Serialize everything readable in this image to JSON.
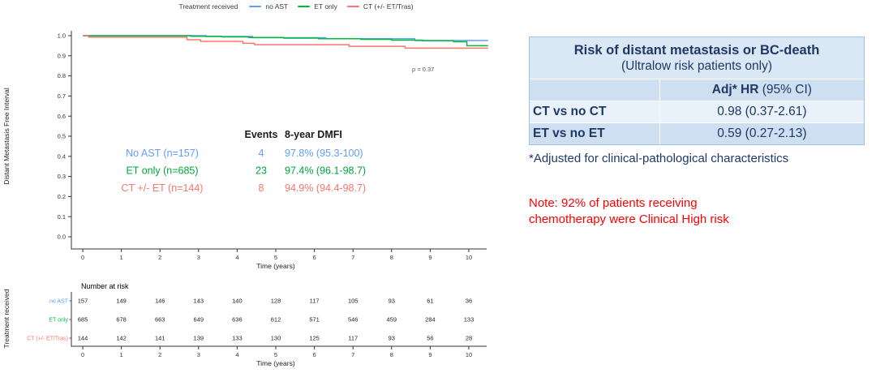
{
  "chart_data": {
    "type": "line",
    "variant": "kaplan-meier-step",
    "title": "",
    "xlabel": "Time (years)",
    "ylabel": "Distant Metastasis Free Interval",
    "xlim": [
      0,
      10.5
    ],
    "ylim": [
      0.0,
      1.0
    ],
    "x_ticks": [
      0,
      1,
      2,
      3,
      4,
      5,
      6,
      7,
      8,
      9,
      10
    ],
    "y_ticks": [
      1.0,
      0.9,
      0.8,
      0.7,
      0.6,
      0.5,
      0.4,
      0.3,
      0.2,
      0.1,
      0.0
    ],
    "grid": false,
    "legend_position": "top",
    "legend_title": "Treatment received",
    "p_value": "p = 0.37",
    "series": [
      {
        "name": "no AST",
        "color": "#619CFF",
        "n": 157,
        "events": 4,
        "dmfi_8yr": "97.8% (95.3-100)",
        "steps": [
          [
            0,
            1.0
          ],
          [
            3.2,
            0.996
          ],
          [
            4.4,
            0.99
          ],
          [
            6.3,
            0.985
          ],
          [
            8.6,
            0.976
          ],
          [
            10.5,
            0.976
          ]
        ]
      },
      {
        "name": "ET only",
        "color": "#00BA38",
        "n": 685,
        "events": 23,
        "dmfi_8yr": "97.4% (96.1-98.7)",
        "steps": [
          [
            0,
            1.0
          ],
          [
            2.8,
            0.997
          ],
          [
            3.6,
            0.994
          ],
          [
            4.3,
            0.991
          ],
          [
            5.2,
            0.988
          ],
          [
            6.1,
            0.985
          ],
          [
            7.2,
            0.982
          ],
          [
            8.0,
            0.978
          ],
          [
            8.8,
            0.975
          ],
          [
            9.6,
            0.97
          ],
          [
            9.95,
            0.95
          ],
          [
            10.5,
            0.95
          ]
        ]
      },
      {
        "name": "CT (+/- ET/Tras)",
        "color": "#F8766D",
        "n": 144,
        "events": 8,
        "dmfi_8yr": "94.9% (94.4-98.7)",
        "steps": [
          [
            0,
            1.0
          ],
          [
            0.15,
            0.993
          ],
          [
            2.7,
            0.98
          ],
          [
            3.05,
            0.972
          ],
          [
            4.15,
            0.962
          ],
          [
            4.45,
            0.955
          ],
          [
            6.9,
            0.947
          ],
          [
            8.35,
            0.938
          ],
          [
            10.5,
            0.938
          ]
        ]
      }
    ],
    "annotation_table": {
      "header_events": "Events",
      "header_dmfi": "8-year DMFI",
      "rows": [
        {
          "label": "No AST (n=157)",
          "events": "4",
          "dmfi": "97.8% (95.3-100)",
          "color": "#619CFF"
        },
        {
          "label": "ET only (n=685)",
          "events": "23",
          "dmfi": "97.4% (96.1-98.7)",
          "color": "#00A63C"
        },
        {
          "label": "CT +/- ET (n=144)",
          "events": "8",
          "dmfi": "94.9% (94.4-98.7)",
          "color": "#F8766D"
        }
      ]
    },
    "number_at_risk": {
      "title": "Number at risk",
      "axis_label": "Treatment received",
      "xlabel": "Time (years)",
      "times": [
        0,
        1,
        2,
        3,
        4,
        5,
        6,
        7,
        8,
        9,
        10
      ],
      "rows": [
        {
          "label": "no AST",
          "color": "#619CFF",
          "values": [
            157,
            149,
            146,
            143,
            140,
            128,
            117,
            105,
            93,
            61,
            36
          ]
        },
        {
          "label": "ET only",
          "color": "#00BA38",
          "values": [
            685,
            678,
            663,
            649,
            636,
            612,
            571,
            546,
            459,
            284,
            133
          ]
        },
        {
          "label": "CT (+/- ET/Tras)",
          "color": "#F8766D",
          "values": [
            144,
            142,
            141,
            139,
            133,
            130,
            125,
            117,
            93,
            56,
            28
          ]
        }
      ]
    }
  },
  "side_panel": {
    "table": {
      "title_bold": "Risk of distant metastasis or BC-death",
      "title_sub": "(Ultralow risk patients only)",
      "col_header_bold": "Adj* HR",
      "col_header_normal": " (95% CI)",
      "rows": [
        {
          "label": "CT vs no CT",
          "value": "0.98 (0.37-2.61)"
        },
        {
          "label": "ET vs no ET",
          "value": "0.59 (0.27-2.13)"
        }
      ]
    },
    "footnote": "*Adjusted for clinical-pathological characteristics",
    "note_lines": [
      "Note: 92% of patients receiving",
      "chemotherapy were Clinical High risk"
    ]
  },
  "colors": {
    "navy": "#1F3864",
    "note_red": "#FF0000",
    "axis": "#333333",
    "table_title_bg": "#DAE8F5",
    "table_dark_bg": "#CDDFF0",
    "table_light_bg": "#E9F1FA",
    "table_border": "#9DC3E6"
  }
}
